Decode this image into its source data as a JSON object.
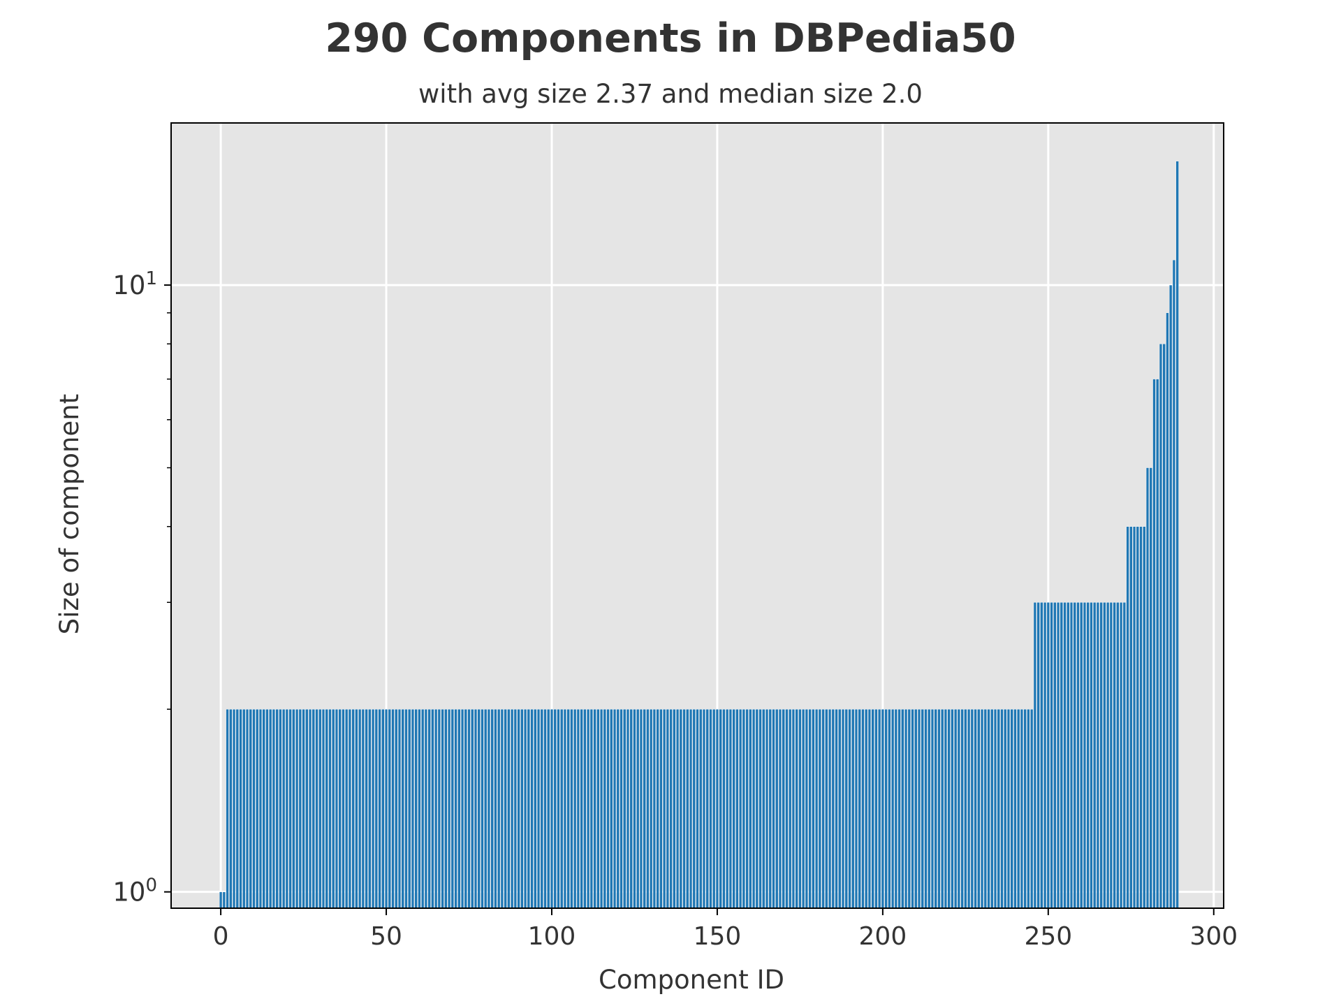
{
  "chart_data": {
    "type": "bar",
    "title": "290 Components in DBPedia50",
    "subtitle": "with avg size 2.37 and median size 2.0",
    "xlabel": "Component ID",
    "ylabel": "Size of component",
    "x_ticks": [
      "0",
      "50",
      "100",
      "150",
      "200",
      "250",
      "300"
    ],
    "y_scale": "log",
    "y_ticks": [
      {
        "base": "10",
        "exp": "0",
        "value": 1
      },
      {
        "base": "10",
        "exp": "1",
        "value": 10
      }
    ],
    "xlim": [
      -15,
      303
    ],
    "ylim": [
      0.94,
      18.5
    ],
    "grid": true,
    "series_runs": [
      {
        "x_from": 0,
        "x_to": 1,
        "value": 1
      },
      {
        "x_from": 2,
        "x_to": 245,
        "value": 2
      },
      {
        "x_from": 246,
        "x_to": 273,
        "value": 3
      },
      {
        "x_from": 274,
        "x_to": 279,
        "value": 4
      },
      {
        "x_from": 280,
        "x_to": 281,
        "value": 5
      },
      {
        "x_from": 282,
        "x_to": 283,
        "value": 7
      },
      {
        "x_from": 284,
        "x_to": 285,
        "value": 8
      },
      {
        "x_from": 286,
        "x_to": 286,
        "value": 9
      },
      {
        "x_from": 287,
        "x_to": 287,
        "value": 10
      },
      {
        "x_from": 288,
        "x_to": 288,
        "value": 11
      },
      {
        "x_from": 289,
        "x_to": 289,
        "value": 16
      }
    ],
    "colors": {
      "bar": "#1f77b4",
      "bar_edge": "#ffffff",
      "plot_bg": "#e5e5e5",
      "grid": "#ffffff",
      "text": "#333333"
    }
  }
}
